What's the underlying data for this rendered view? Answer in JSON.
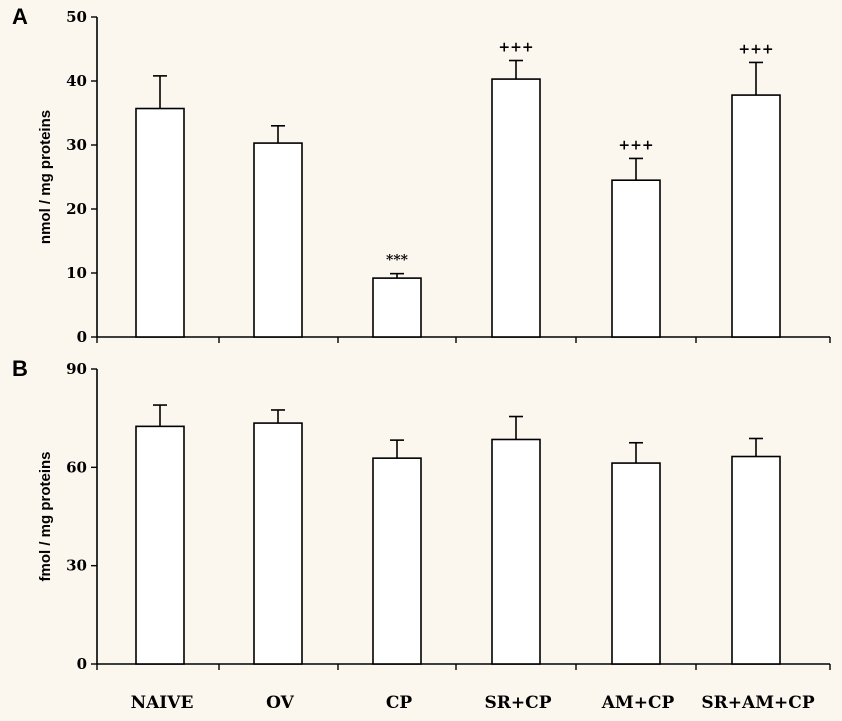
{
  "chart_data": [
    {
      "type": "bar",
      "panel_label": "A",
      "ylabel": "nmol / mg proteins",
      "ylim": [
        0,
        50
      ],
      "yticks": [
        0,
        10,
        20,
        30,
        40,
        50
      ],
      "categories": [
        "NAIVE",
        "OV",
        "CP",
        "SR+CP",
        "AM+CP",
        "SR+AM+CP"
      ],
      "values": [
        35.7,
        30.3,
        9.2,
        40.3,
        24.5,
        37.8
      ],
      "error_plus": [
        5.1,
        2.7,
        0.7,
        2.9,
        3.4,
        5.1
      ],
      "annotations": [
        "",
        "",
        "***",
        "+++",
        "+++",
        "+++"
      ]
    },
    {
      "type": "bar",
      "panel_label": "B",
      "ylabel": "fmol / mg proteins",
      "ylim": [
        0,
        90
      ],
      "yticks": [
        0,
        30,
        60,
        90
      ],
      "categories": [
        "NAIVE",
        "OV",
        "CP",
        "SR+CP",
        "AM+CP",
        "SR+AM+CP"
      ],
      "values": [
        72.5,
        73.5,
        62.8,
        68.5,
        61.3,
        63.3
      ],
      "error_plus": [
        6.5,
        4.0,
        5.5,
        7.0,
        6.2,
        5.5
      ],
      "annotations": [
        "",
        "",
        "",
        "",
        "",
        ""
      ]
    }
  ]
}
